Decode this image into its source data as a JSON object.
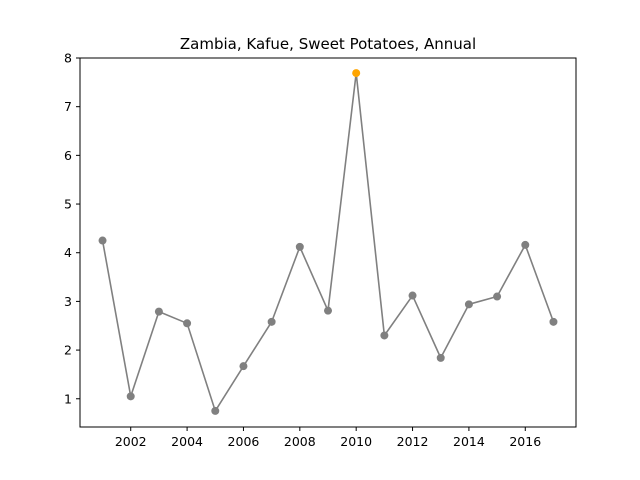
{
  "chart_data": {
    "type": "line",
    "title": "Zambia, Kafue, Sweet Potatoes, Annual",
    "xlabel": "",
    "ylabel": "",
    "xlim": [
      2000.2,
      2017.8
    ],
    "ylim": [
      0.42,
      8.0
    ],
    "x_ticks": [
      2002,
      2004,
      2006,
      2008,
      2010,
      2012,
      2014,
      2016
    ],
    "x_tick_labels": [
      "2002",
      "2004",
      "2006",
      "2008",
      "2010",
      "2012",
      "2014",
      "2016"
    ],
    "y_ticks": [
      1,
      2,
      3,
      4,
      5,
      6,
      7,
      8
    ],
    "y_tick_labels": [
      "1",
      "2",
      "3",
      "4",
      "5",
      "6",
      "7",
      "8"
    ],
    "grid": false,
    "legend": "none",
    "series": [
      {
        "x": [
          2001,
          2002,
          2003,
          2004,
          2005,
          2006,
          2007,
          2008,
          2009,
          2010,
          2011,
          2012,
          2013,
          2014,
          2015,
          2016,
          2017
        ],
        "values": [
          4.25,
          1.05,
          2.79,
          2.55,
          0.75,
          1.67,
          2.58,
          4.12,
          2.81,
          7.69,
          2.3,
          3.12,
          1.84,
          2.94,
          3.1,
          4.16,
          2.58
        ],
        "color": "#808080"
      }
    ],
    "highlight": {
      "x": 2010,
      "value": 7.69,
      "color": "#ffa500"
    }
  }
}
